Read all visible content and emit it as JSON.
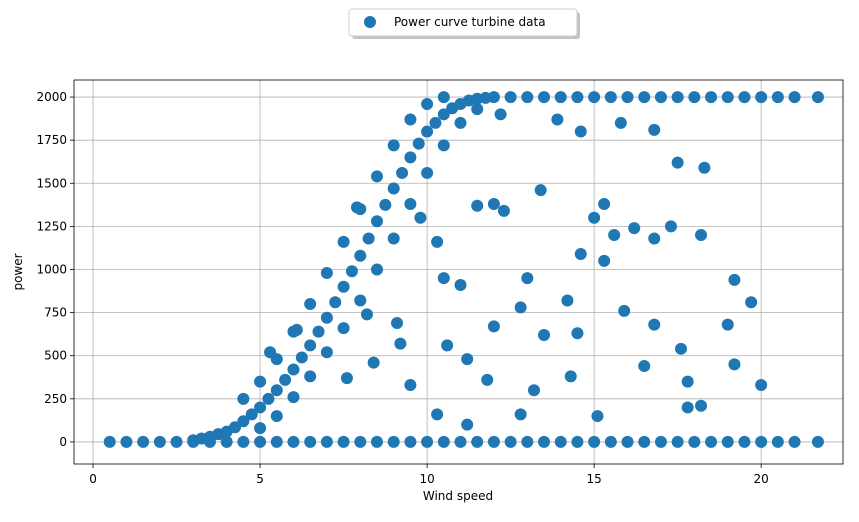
{
  "chart_data": {
    "type": "scatter",
    "xlabel": "Wind speed",
    "ylabel": "power",
    "xlim": [
      -0.57,
      22.45
    ],
    "ylim": [
      -128,
      2099
    ],
    "xticks": [
      0,
      5,
      10,
      15,
      20
    ],
    "yticks": [
      0,
      250,
      500,
      750,
      1000,
      1250,
      1500,
      1750,
      2000
    ],
    "grid": true,
    "legend": "upper center",
    "x": [
      0.5,
      1,
      1.5,
      2,
      2.5,
      3,
      3.5,
      4,
      4.5,
      5,
      5.5,
      6,
      6.5,
      7,
      7.5,
      8,
      8.5,
      9,
      9.5,
      10,
      10.5,
      11,
      11.5,
      12,
      12.5,
      13,
      13.5,
      14,
      14.5,
      15,
      15.5,
      16,
      16.5,
      17,
      17.5,
      18,
      18.5,
      19,
      19.5,
      20,
      20.5,
      21,
      21.7,
      3,
      3.25,
      3.5,
      3.75,
      4,
      4.25,
      4.5,
      4.75,
      5,
      5.25,
      5.5,
      5.75,
      6,
      6.25,
      6.5,
      6.75,
      7,
      7.25,
      7.5,
      7.75,
      8,
      8.25,
      8.5,
      8.75,
      9,
      9.25,
      9.5,
      9.75,
      10,
      10.25,
      10.5,
      10.75,
      11,
      11.25,
      11.5,
      11.75,
      12,
      4.5,
      5,
      5.5,
      6,
      6.5,
      7,
      7.5,
      8,
      8.5,
      9,
      9.5,
      10,
      10.5,
      5,
      5.5,
      6,
      6.5,
      7,
      7.5,
      8,
      8.5,
      9,
      9.5,
      10,
      10.5,
      11,
      11.5,
      12.5,
      13,
      13.5,
      14,
      14.5,
      15,
      15.5,
      16,
      16.5,
      17,
      17.5,
      18,
      18.5,
      19,
      19.5,
      20,
      20.5,
      21,
      21.7,
      7.9,
      8.2,
      9.8,
      10.3,
      10.5,
      11,
      11.5,
      12,
      12.3,
      13,
      13.4,
      14.5,
      15,
      15.3,
      15.6,
      16.2,
      16.8,
      17.3,
      18.2,
      19.2,
      19.7,
      9.5,
      10.6,
      11.2,
      11.8,
      12.8,
      13.2,
      14.3,
      15.1,
      16.5,
      17.6,
      17.8,
      18.2,
      19.2,
      20,
      11.2,
      12.2,
      13.9,
      14.6,
      15.8,
      16.8,
      17.5,
      18.3,
      7.6,
      8.4,
      9.1,
      6.1,
      5.3,
      12,
      13.5,
      14.6,
      15.3,
      16.8,
      19,
      9.2,
      10.3,
      12.8,
      14.2,
      15.9,
      17.8
    ],
    "series": [
      {
        "name": "Power curve turbine data",
        "color": "#1f77b4",
        "values": [
          0,
          0,
          0,
          0,
          0,
          0,
          0,
          0,
          0,
          0,
          0,
          0,
          0,
          0,
          0,
          0,
          0,
          0,
          0,
          0,
          0,
          0,
          0,
          0,
          0,
          0,
          0,
          0,
          0,
          0,
          0,
          0,
          0,
          0,
          0,
          0,
          0,
          0,
          0,
          0,
          0,
          0,
          0,
          10,
          20,
          30,
          45,
          60,
          85,
          120,
          160,
          200,
          250,
          300,
          360,
          420,
          490,
          560,
          640,
          720,
          810,
          900,
          990,
          1080,
          1180,
          1280,
          1375,
          1470,
          1560,
          1650,
          1730,
          1800,
          1850,
          1900,
          1935,
          1960,
          1980,
          1990,
          1995,
          2000,
          250,
          350,
          480,
          640,
          800,
          980,
          1160,
          1350,
          1540,
          1720,
          1870,
          1960,
          2000,
          80,
          150,
          260,
          380,
          520,
          660,
          820,
          1000,
          1180,
          1380,
          1560,
          1720,
          1850,
          1930,
          2000,
          2000,
          2000,
          2000,
          2000,
          2000,
          2000,
          2000,
          2000,
          2000,
          2000,
          2000,
          2000,
          2000,
          2000,
          2000,
          2000,
          2000,
          2000,
          1360,
          740,
          1300,
          1160,
          950,
          910,
          1370,
          1380,
          1340,
          950,
          1460,
          630,
          1300,
          1380,
          1200,
          1240,
          1180,
          1250,
          1200,
          940,
          810,
          330,
          560,
          480,
          360,
          160,
          300,
          380,
          150,
          440,
          540,
          200,
          210,
          450,
          330,
          100,
          1900,
          1870,
          1800,
          1850,
          1810,
          1620,
          1590,
          370,
          460,
          690,
          650,
          520,
          670,
          620,
          1090,
          1050,
          680,
          680,
          570,
          160,
          780,
          820,
          760,
          350
        ]
      }
    ]
  }
}
